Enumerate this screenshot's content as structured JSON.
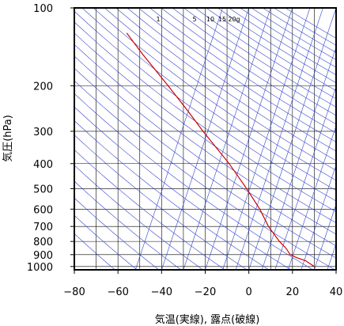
{
  "chart_data": {
    "type": "line",
    "title": "",
    "xlabel": "気温(実線), 露点(破線)",
    "ylabel": "気圧(hPa)",
    "xlim": [
      -80,
      40
    ],
    "ylim": [
      1030,
      100
    ],
    "y_scale": "log",
    "x_ticks": [
      -80,
      -60,
      -40,
      -20,
      0,
      20,
      40
    ],
    "x_tick_labels": [
      "−80",
      "−60",
      "−40",
      "−20",
      "0",
      "20",
      "40"
    ],
    "y_ticks": [
      100,
      200,
      300,
      400,
      500,
      600,
      700,
      800,
      900,
      1000
    ],
    "y_tick_labels": [
      "100",
      "200",
      "300",
      "400",
      "500",
      "600",
      "700",
      "800",
      "900",
      "1000"
    ],
    "mixing_ratio_labels": [
      "1",
      "5",
      "10",
      "15",
      "20g"
    ],
    "grid": true,
    "colors": {
      "temperature": "#cc0000",
      "adiabats": "#3344cc",
      "grid": "#000000"
    },
    "series": [
      {
        "pressure": [
          1000,
          950,
          925,
          900,
          850,
          800,
          700,
          600,
          500,
          400,
          300,
          250,
          200,
          150,
          125
        ],
        "x": [
          30,
          26,
          22,
          19,
          17,
          14,
          9,
          5,
          -1,
          -9,
          -21,
          -28,
          -37,
          -49,
          -56
        ]
      }
    ]
  }
}
